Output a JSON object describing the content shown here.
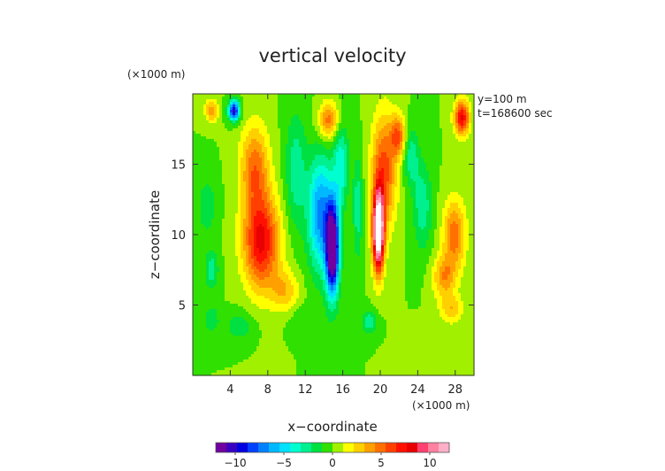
{
  "chart_data": {
    "type": "heatmap",
    "title": "vertical velocity",
    "xlabel": "x−coordinate",
    "ylabel": "z−coordinate",
    "x_unit": "(×1000 m)",
    "y_unit": "(×1000 m)",
    "annotations": [
      "y=100 m",
      "t=168600 sec"
    ],
    "xlim": [
      0,
      30
    ],
    "ylim": [
      0,
      20
    ],
    "x_ticks": [
      4,
      8,
      12,
      16,
      20,
      24,
      28
    ],
    "y_ticks": [
      5,
      10,
      15
    ],
    "x_tick_labels": [
      "4",
      "8",
      "12",
      "16",
      "20",
      "24",
      "28"
    ],
    "y_tick_labels": [
      "5",
      "10",
      "15"
    ],
    "colorbar": {
      "range": [
        -12,
        12
      ],
      "ticks": [
        -10,
        -5,
        0,
        5,
        10
      ],
      "tick_labels": [
        "−10",
        "−5",
        "0",
        "5",
        "10"
      ],
      "colors": [
        "#7000a0",
        "#3a00c0",
        "#0000e0",
        "#0040ff",
        "#0080ff",
        "#00b8ff",
        "#00e0ff",
        "#00ffd0",
        "#00f090",
        "#00e040",
        "#30e000",
        "#a0f000",
        "#ffff00",
        "#ffd000",
        "#ffa000",
        "#ff7000",
        "#ff4000",
        "#ff1000",
        "#e80000",
        "#ff4070",
        "#ff80a0",
        "#ffb0c8"
      ]
    },
    "background_value": 0,
    "features": [
      {
        "x": 14.9,
        "z": 9.0,
        "sx": 0.7,
        "sz": 3.2,
        "w": -14
      },
      {
        "x": 13.6,
        "z": 11.5,
        "sx": 1.3,
        "sz": 4.0,
        "w": -7
      },
      {
        "x": 15.8,
        "z": 15.0,
        "sx": 0.8,
        "sz": 3.0,
        "w": -4
      },
      {
        "x": 19.8,
        "z": 10.2,
        "sx": 0.6,
        "sz": 2.8,
        "w": 15
      },
      {
        "x": 20.4,
        "z": 14.5,
        "sx": 1.3,
        "sz": 4.0,
        "w": 6
      },
      {
        "x": 21.9,
        "z": 17.0,
        "sx": 0.8,
        "sz": 1.5,
        "w": 5
      },
      {
        "x": 7.3,
        "z": 9.5,
        "sx": 1.9,
        "sz": 3.3,
        "w": 8
      },
      {
        "x": 6.6,
        "z": 14.8,
        "sx": 1.5,
        "sz": 3.0,
        "w": 5
      },
      {
        "x": 9.8,
        "z": 6.0,
        "sx": 1.5,
        "sz": 1.5,
        "w": 3
      },
      {
        "x": 11.0,
        "z": 14.5,
        "sx": 1.1,
        "sz": 4.0,
        "w": -3
      },
      {
        "x": 17.6,
        "z": 12.0,
        "sx": 0.5,
        "sz": 3.5,
        "w": -3
      },
      {
        "x": 24.5,
        "z": 12.0,
        "sx": 1.0,
        "sz": 3.0,
        "w": -3
      },
      {
        "x": 23.3,
        "z": 15.5,
        "sx": 0.8,
        "sz": 2.0,
        "w": -3
      },
      {
        "x": 27.9,
        "z": 10.0,
        "sx": 1.2,
        "sz": 2.5,
        "w": 5
      },
      {
        "x": 26.8,
        "z": 7.0,
        "sx": 1.2,
        "sz": 1.5,
        "w": 4
      },
      {
        "x": 27.6,
        "z": 4.7,
        "sx": 1.2,
        "sz": 1.0,
        "w": 3
      },
      {
        "x": 28.7,
        "z": 18.3,
        "sx": 0.8,
        "sz": 1.2,
        "w": 8
      },
      {
        "x": 14.5,
        "z": 18.1,
        "sx": 1.1,
        "sz": 1.3,
        "w": 5
      },
      {
        "x": 4.4,
        "z": 18.8,
        "sx": 0.6,
        "sz": 0.7,
        "w": -10
      },
      {
        "x": 2.0,
        "z": 18.8,
        "sx": 0.7,
        "sz": 0.8,
        "w": 4
      },
      {
        "x": 2.0,
        "z": 7.5,
        "sx": 0.7,
        "sz": 1.3,
        "w": -3
      },
      {
        "x": 2.0,
        "z": 4.0,
        "sx": 0.8,
        "sz": 1.0,
        "w": -2
      },
      {
        "x": 1.5,
        "z": 12.0,
        "sx": 1.0,
        "sz": 2.0,
        "w": -2
      },
      {
        "x": 5.0,
        "z": 3.5,
        "sx": 1.5,
        "sz": 1.0,
        "w": -2
      },
      {
        "x": 18.8,
        "z": 3.8,
        "sx": 0.8,
        "sz": 0.8,
        "w": -3
      },
      {
        "x": 12.0,
        "z": 4.0,
        "sx": 2.0,
        "sz": 1.0,
        "w": -1
      },
      {
        "x": 25.0,
        "z": 2.5,
        "sx": 1.5,
        "sz": 1.0,
        "w": 1
      }
    ]
  }
}
